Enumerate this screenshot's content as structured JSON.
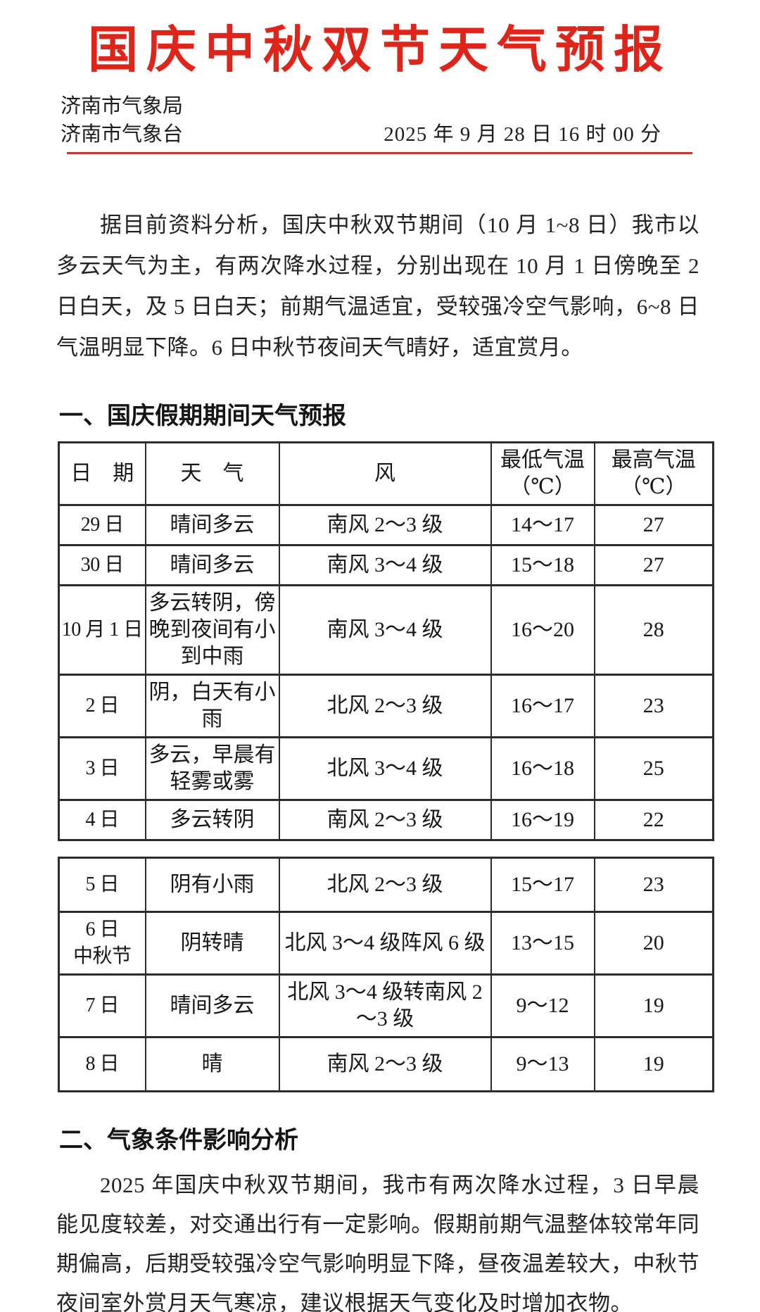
{
  "doc": {
    "title": "国庆中秋双节天气预报",
    "agency": [
      "济南市气象局",
      "济南市气象台"
    ],
    "issued_at": "2025 年 9 月 28 日 16 时 00 分",
    "intro": "据目前资料分析，国庆中秋双节期间（10 月 1~8 日）我市以多云天气为主，有两次降水过程，分别出现在 10 月 1 日傍晚至 2 日白天，及 5 日白天；前期气温适宜，受较强冷空气影响，6~8 日气温明显下降。6 日中秋节夜间天气晴好，适宜赏月。",
    "section1_title": "一、国庆假期期间天气预报",
    "section2_title": "二、气象条件影响分析",
    "analysis": "2025 年国庆中秋双节期间，我市有两次降水过程，3 日早晨能见度较差，对交通出行有一定影响。假期前期气温整体较常年同期偏高，后期受较强冷空气影响明显下降，昼夜温差较大，中秋节夜间室外赏月天气寒凉，建议根据天气变化及时增加衣物。",
    "colors": {
      "title_red": "#df241a",
      "rule_red": "#bf3b33"
    }
  },
  "forecast": {
    "headers": [
      "日　期",
      "天　气",
      "风",
      "最低气温\n（℃）",
      "最高气温\n（℃）"
    ],
    "columns": [
      "date",
      "weather",
      "wind",
      "low-temp",
      "high-temp"
    ],
    "table1": [
      [
        "29 日",
        "晴间多云",
        "南风 2～3 级",
        "14～17",
        "27"
      ],
      [
        "30 日",
        "晴间多云",
        "南风 3～4 级",
        "15～18",
        "27"
      ],
      [
        "10 月 1 日",
        "多云转阴，傍晚到夜间有小到中雨",
        "南风 3～4 级",
        "16～20",
        "28"
      ],
      [
        "2 日",
        "阴，白天有小雨",
        "北风 2～3 级",
        "16～17",
        "23"
      ],
      [
        "3 日",
        "多云，早晨有轻雾或雾",
        "北风 3～4 级",
        "16～18",
        "25"
      ],
      [
        "4 日",
        "多云转阴",
        "南风 2～3 级",
        "16～19",
        "22"
      ]
    ],
    "table2": [
      [
        "5 日",
        "阴有小雨",
        "北风 2～3 级",
        "15～17",
        "23"
      ],
      [
        "6 日\n中秋节",
        "阴转晴",
        "北风 3～4 级阵风 6 级",
        "13～15",
        "20"
      ],
      [
        "7 日",
        "晴间多云",
        "北风 3～4 级转南风 2～3 级",
        "9～12",
        "19"
      ],
      [
        "8 日",
        "晴",
        "南风 2～3 级",
        "9～13",
        "19"
      ]
    ]
  }
}
